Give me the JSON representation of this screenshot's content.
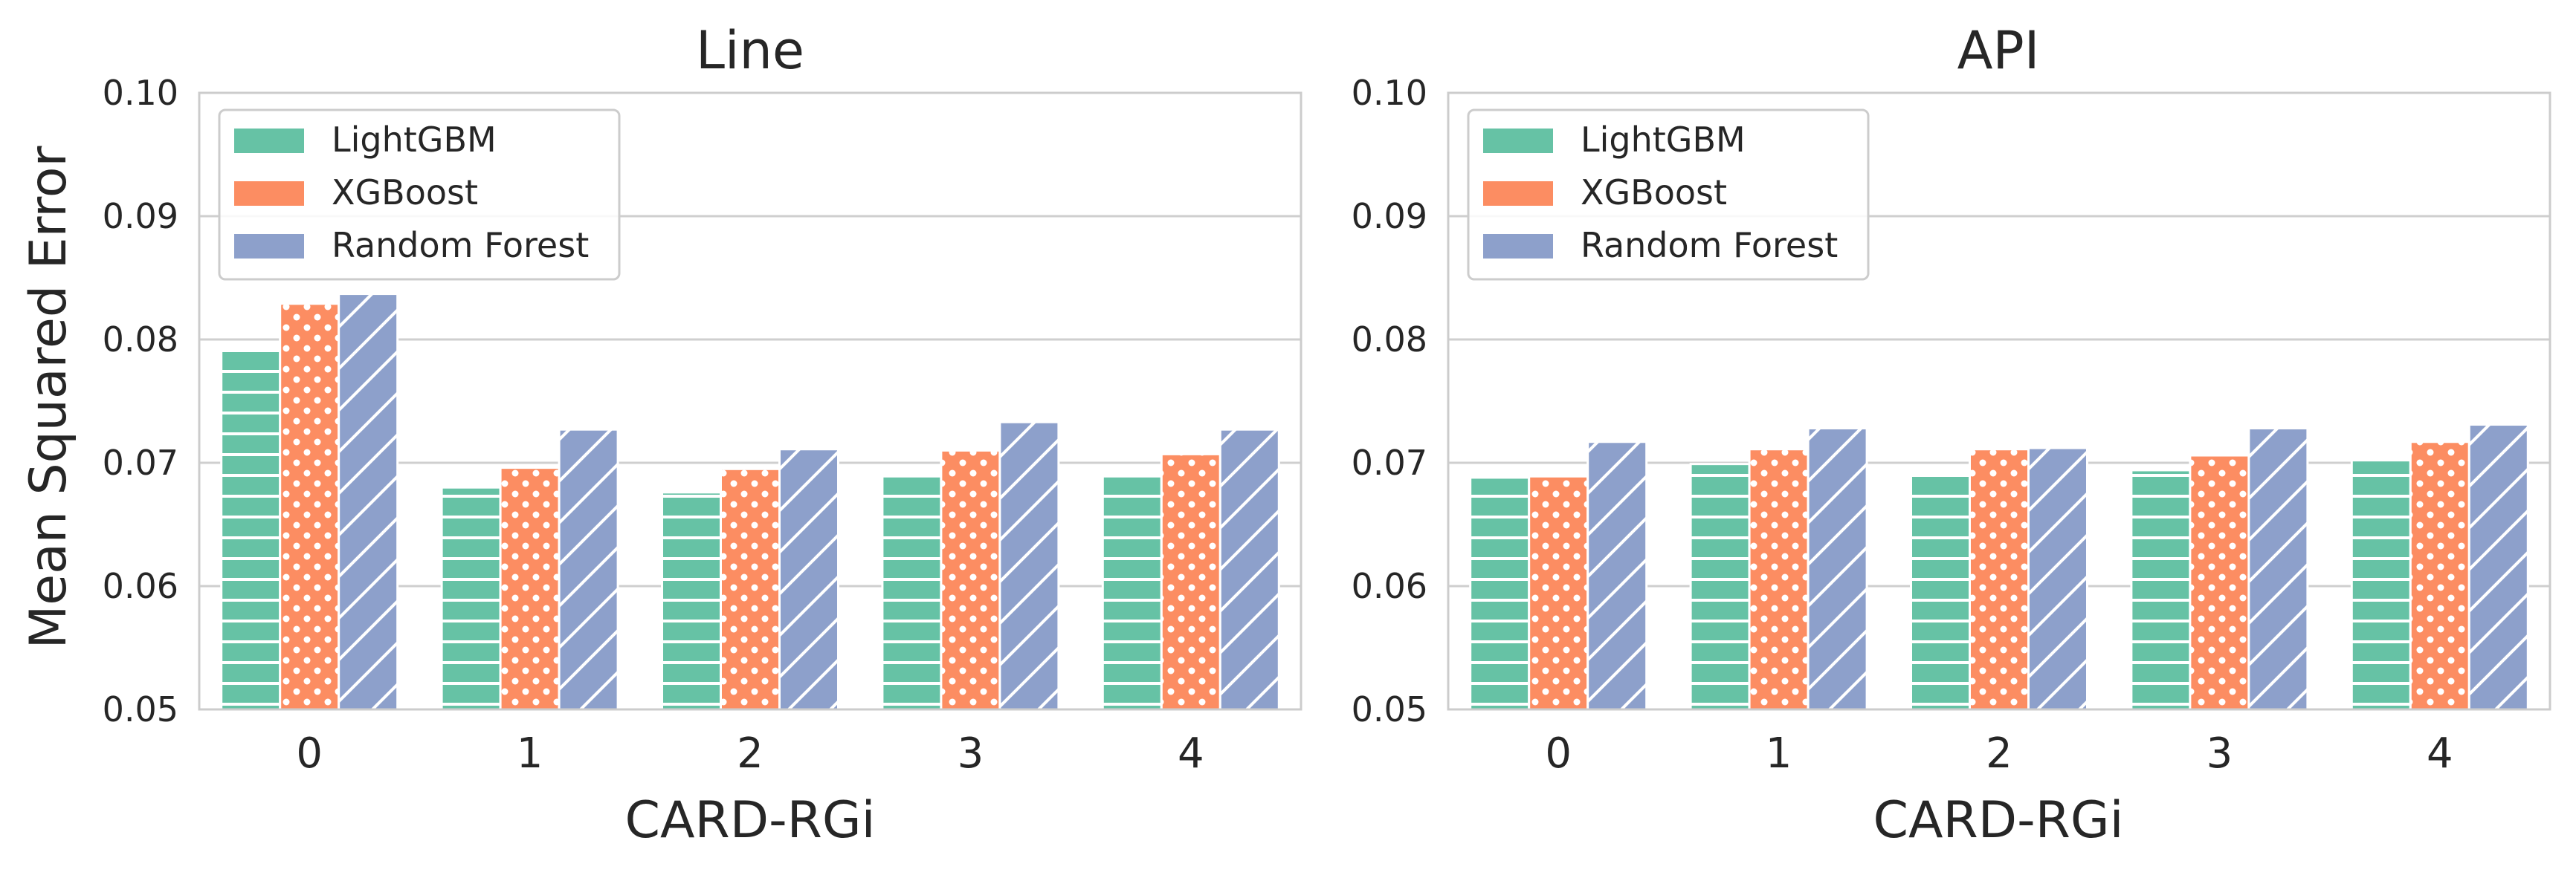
{
  "figure": {
    "ylabel": "Mean Squared Error",
    "colors": {
      "LightGBM": "#66c2a5",
      "XGBoost": "#fc8d62",
      "Random Forest": "#8da0cb",
      "grid": "#cfcfcf",
      "frame": "#cccccc"
    },
    "hatches": {
      "LightGBM": "horizontal-lines",
      "XGBoost": "dots",
      "Random Forest": "diagonal-lines"
    }
  },
  "chart_data": [
    {
      "type": "bar",
      "title": "Line",
      "xlabel": "CARD-RGi",
      "ylabel": "Mean Squared Error",
      "categories": [
        "0",
        "1",
        "2",
        "3",
        "4"
      ],
      "ylim": [
        0.05,
        0.1
      ],
      "yticks": [
        "0.05",
        "0.06",
        "0.07",
        "0.08",
        "0.09",
        "0.10"
      ],
      "grid": true,
      "legend_position": "top-left",
      "series": [
        {
          "name": "LightGBM",
          "values": [
            0.0791,
            0.068,
            0.0676,
            0.0689,
            0.0689
          ]
        },
        {
          "name": "XGBoost",
          "values": [
            0.0829,
            0.0696,
            0.0695,
            0.071,
            0.0707
          ]
        },
        {
          "name": "Random Forest",
          "values": [
            0.0837,
            0.0727,
            0.0711,
            0.0733,
            0.0727
          ]
        }
      ]
    },
    {
      "type": "bar",
      "title": "API",
      "xlabel": "CARD-RGi",
      "ylabel": "",
      "categories": [
        "0",
        "1",
        "2",
        "3",
        "4"
      ],
      "ylim": [
        0.05,
        0.1
      ],
      "yticks": [
        "0.05",
        "0.06",
        "0.07",
        "0.08",
        "0.09",
        "0.10"
      ],
      "grid": true,
      "legend_position": "top-left",
      "series": [
        {
          "name": "LightGBM",
          "values": [
            0.0688,
            0.0699,
            0.069,
            0.0694,
            0.0702
          ]
        },
        {
          "name": "XGBoost",
          "values": [
            0.0689,
            0.0711,
            0.0711,
            0.0706,
            0.0717
          ]
        },
        {
          "name": "Random Forest",
          "values": [
            0.0717,
            0.0728,
            0.0712,
            0.0728,
            0.0731
          ]
        }
      ]
    }
  ]
}
